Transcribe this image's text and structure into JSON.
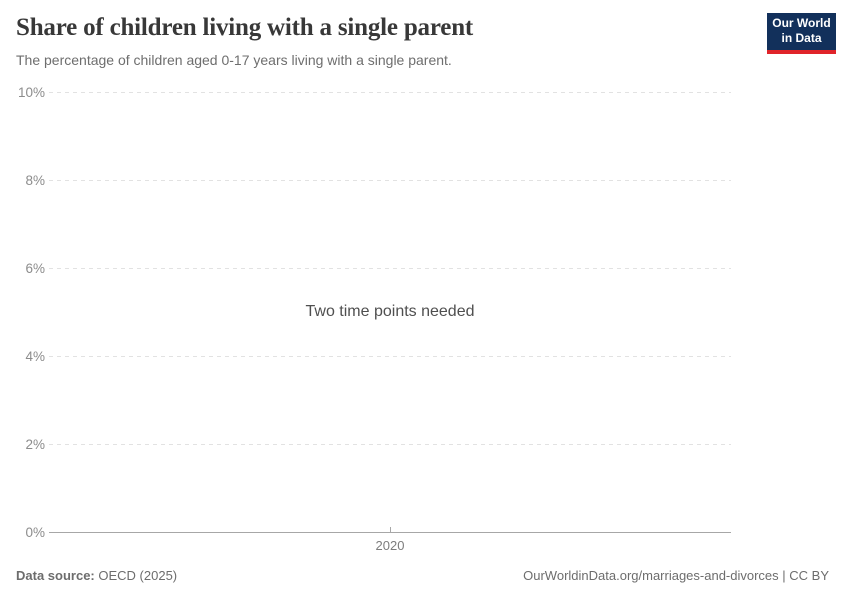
{
  "header": {
    "title": "Share of children living with a single parent",
    "subtitle": "The percentage of children aged 0-17 years living with a single parent.",
    "logo_line1": "Our World",
    "logo_line2": "in Data"
  },
  "chart_data": {
    "type": "line",
    "title": "Share of children living with a single parent",
    "subtitle": "The percentage of children aged 0-17 years living with a single parent.",
    "series": [],
    "empty_message": "Two time points needed",
    "x_tick_labels": [
      "2020"
    ],
    "y_tick_labels": [
      "0%",
      "2%",
      "4%",
      "6%",
      "8%",
      "10%"
    ],
    "y_tick_values": [
      0,
      2,
      4,
      6,
      8,
      10
    ],
    "ylim": [
      0,
      10
    ],
    "grid": "horizontal-dashed",
    "legend": "none"
  },
  "footer": {
    "source_label": "Data source:",
    "source_value": "OECD (2025)",
    "link": "OurWorldinData.org/marriages-and-divorces | CC BY"
  },
  "colors": {
    "background": "#ffffff",
    "title_text": "#383838",
    "subtitle_text": "#6e6e6e",
    "axis_label": "#8c8c8c",
    "gridline": "#e2e2e2",
    "axis_line": "#a7a7a7",
    "empty_message_text": "#4f4f4f",
    "footer_text": "#6d6d6d",
    "logo_navy": "#12305b",
    "logo_red": "#e0242a"
  }
}
